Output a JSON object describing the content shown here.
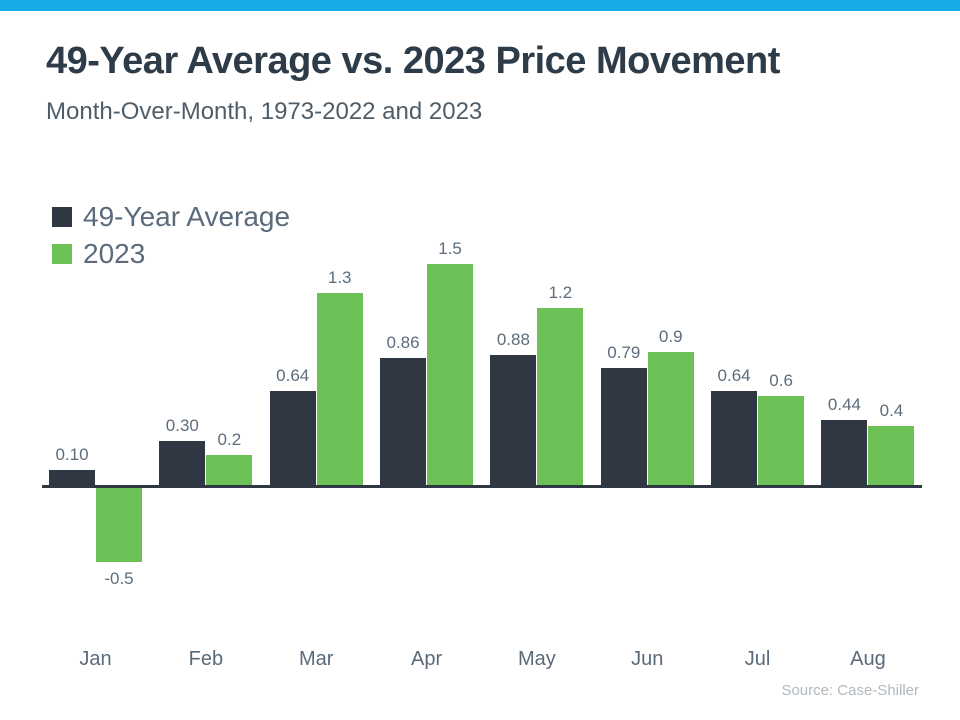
{
  "page": {
    "accent_color": "#18abe9",
    "background_color": "#ffffff"
  },
  "header": {
    "title": "49-Year Average vs. 2023 Price Movement",
    "subtitle": "Month-Over-Month, 1973-2022 and 2023"
  },
  "chart_data": {
    "type": "bar",
    "title": "49-Year Average vs. 2023 Price Movement",
    "subtitle": "Month-Over-Month, 1973-2022 and 2023",
    "categories": [
      "Jan",
      "Feb",
      "Mar",
      "Apr",
      "May",
      "Jun",
      "Jul",
      "Aug"
    ],
    "series": [
      {
        "name": "49-Year Average",
        "color": "#2e3742",
        "values": [
          0.1,
          0.3,
          0.64,
          0.86,
          0.88,
          0.79,
          0.64,
          0.44
        ],
        "labels": [
          "0.10",
          "0.30",
          "0.64",
          "0.86",
          "0.88",
          "0.79",
          "0.64",
          "0.44"
        ]
      },
      {
        "name": "2023",
        "color": "#6dc055",
        "values": [
          -0.5,
          0.2,
          1.3,
          1.5,
          1.2,
          0.9,
          0.6,
          0.4
        ],
        "labels": [
          "-0.5",
          "0.2",
          "1.3",
          "1.5",
          "1.2",
          "0.9",
          "0.6",
          "0.4"
        ]
      }
    ],
    "xlabel": "",
    "ylabel": "",
    "ylim": [
      -0.75,
      1.75
    ],
    "grid": false,
    "legend_position": "top-left",
    "value_labels": true,
    "baseline": 0
  },
  "source": "Source: Case-Shiller"
}
